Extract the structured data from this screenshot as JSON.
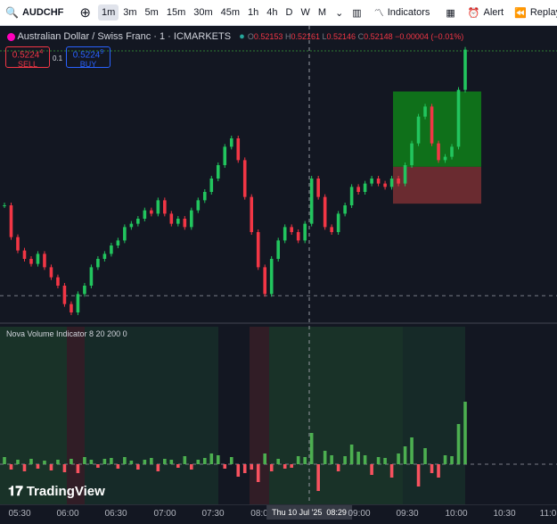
{
  "toolbar": {
    "symbol": "AUDCHF",
    "intervals": [
      "1m",
      "3m",
      "5m",
      "15m",
      "30m",
      "45m",
      "1h",
      "4h",
      "D",
      "W",
      "M"
    ],
    "indicators": "Indicators",
    "alert": "Alert",
    "replay": "Replay"
  },
  "legend": {
    "title": "Australian Dollar / Swiss Franc · 1 · ICMARKETS",
    "o_label": "O",
    "o": "0.52153",
    "h_label": "H",
    "h": "0.52161",
    "l_label": "L",
    "l": "0.52146",
    "c_label": "C",
    "c": "0.52148",
    "change": "−0.00004 (−0.01%)"
  },
  "trade": {
    "sell_price": "0.5224",
    "sell_sup": "4",
    "sell": "SELL",
    "spread": "0.1",
    "buy_price": "0.5224",
    "buy_sup": "9",
    "buy": "BUY"
  },
  "indicator": {
    "title": "Nova Volume Indicator 8 20 200 0"
  },
  "logo": "TradingView",
  "x_axis": {
    "labels": [
      "05:30",
      "06:00",
      "06:30",
      "07:00",
      "07:30",
      "08:0",
      "08:29",
      "09:00",
      "09:30",
      "10:00",
      "10:30",
      "11:0"
    ],
    "crosshair_date": "Thu 10 Jul '25"
  },
  "chart": {
    "ylim": [
      0.5209,
      0.5225
    ],
    "prices": [
      0.52154,
      0.52135,
      0.52127,
      0.52122,
      0.52119,
      0.52125,
      0.52117,
      0.52111,
      0.52106,
      0.52095,
      0.5209,
      0.52101,
      0.52106,
      0.52117,
      0.52122,
      0.52125,
      0.5213,
      0.52133,
      0.52141,
      0.52143,
      0.52146,
      0.52151,
      0.52149,
      0.52157,
      0.52149,
      0.52143,
      0.52146,
      0.52141,
      0.52151,
      0.52157,
      0.52162,
      0.5217,
      0.52178,
      0.52189,
      0.52194,
      0.52181,
      0.52159,
      0.52138,
      0.52117,
      0.52101,
      0.52122,
      0.52133,
      0.52141,
      0.52138,
      0.52133,
      0.52143,
      0.5217,
      0.52159,
      0.52141,
      0.52138,
      0.52149,
      0.52154,
      0.52165,
      0.52162,
      0.52167,
      0.5217,
      0.52167,
      0.52165,
      0.5217,
      0.52167,
      0.52178,
      0.52191,
      0.52207,
      0.52213,
      0.52191,
      0.52181,
      0.52183,
      0.52189,
      0.52223,
      0.52247
    ],
    "position": {
      "target": 0.52222,
      "entry": 0.52177,
      "stop": 0.52155
    },
    "dashed_level": 0.521,
    "vlim": [
      -40,
      150
    ],
    "volume": [
      8,
      -6,
      5,
      -8,
      6,
      -5,
      4,
      -7,
      5,
      -9,
      6,
      -10,
      8,
      5,
      -4,
      6,
      7,
      -5,
      8,
      4,
      -6,
      5,
      7,
      -8,
      6,
      5,
      -4,
      9,
      -6,
      5,
      7,
      12,
      10,
      -5,
      8,
      -14,
      -10,
      -6,
      -20,
      12,
      -8,
      6,
      -5,
      -4,
      9,
      8,
      35,
      -30,
      15,
      10,
      -8,
      9,
      22,
      14,
      10,
      -12,
      8,
      7,
      -15,
      12,
      20,
      30,
      -25,
      18,
      -10,
      -15,
      10,
      9,
      45,
      70
    ]
  }
}
